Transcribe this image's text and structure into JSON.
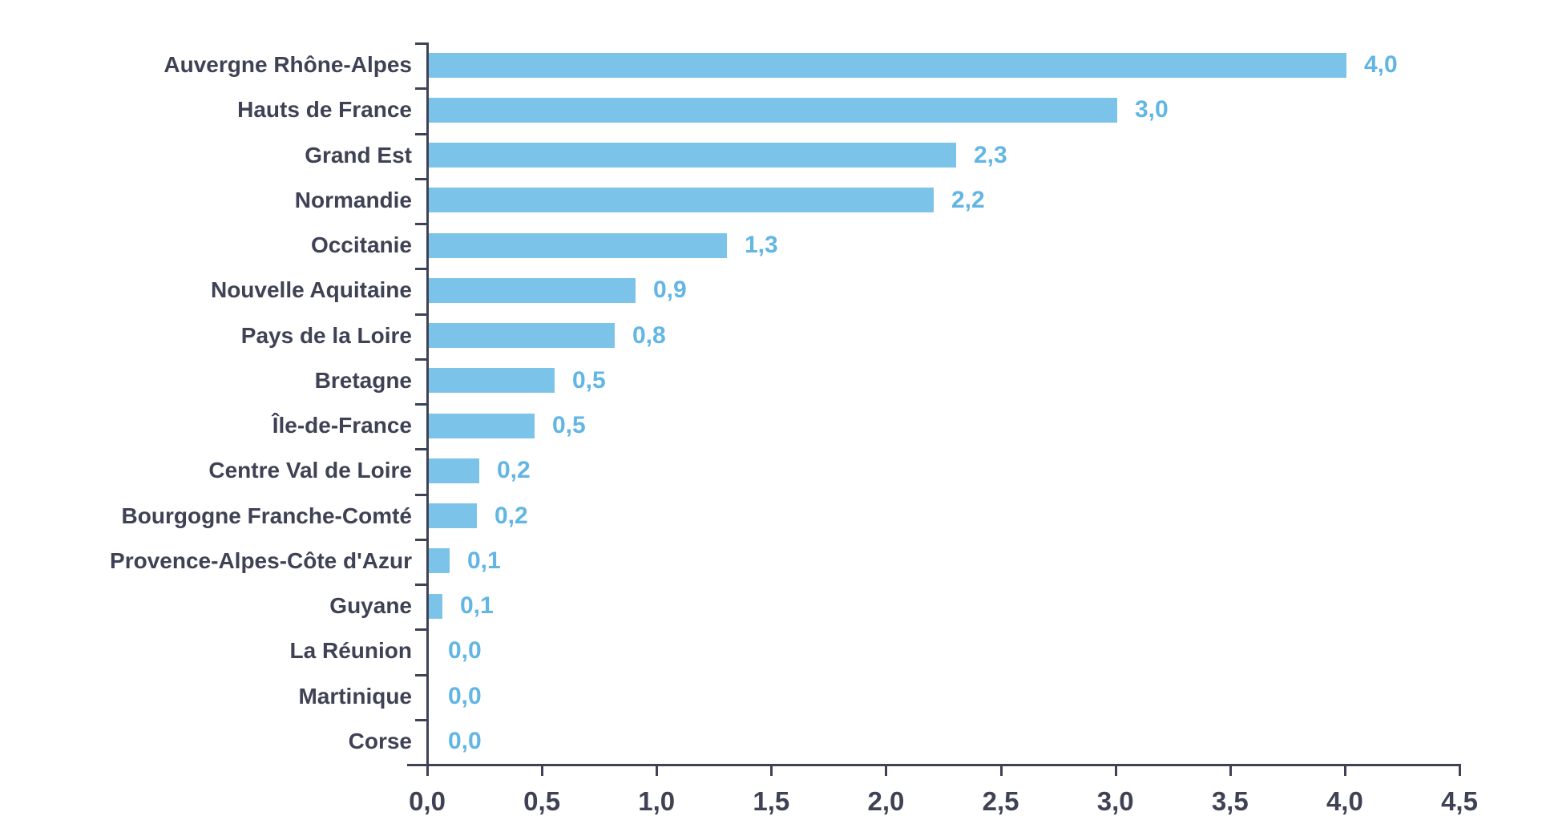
{
  "chart_data": {
    "type": "bar",
    "orientation": "horizontal",
    "title": "",
    "xlabel": "",
    "ylabel": "",
    "xlim": [
      0.0,
      4.5
    ],
    "grid": false,
    "legend": null,
    "categories": [
      "Auvergne Rhône-Alpes",
      "Hauts de France",
      "Grand Est",
      "Normandie",
      "Occitanie",
      "Nouvelle Aquitaine",
      "Pays de la Loire",
      "Bretagne",
      "Île-de-France",
      "Centre Val de Loire",
      "Bourgogne Franche-Comté",
      "Provence-Alpes-Côte  d'Azur",
      "Guyane",
      "La Réunion",
      "Martinique",
      "Corse"
    ],
    "values": [
      4.0,
      3.0,
      2.3,
      2.2,
      1.3,
      0.9,
      0.8,
      0.5,
      0.5,
      0.2,
      0.2,
      0.1,
      0.1,
      0.0,
      0.0,
      0.0
    ],
    "value_labels": [
      "4,0",
      "3,0",
      "2,3",
      "2,2",
      "1,3",
      "0,9",
      "0,8",
      "0,5",
      "0,5",
      "0,2",
      "0,2",
      "0,1",
      "0,1",
      "0,0",
      "0,0",
      "0,0"
    ],
    "visual_lengths": [
      4.0,
      3.0,
      2.3,
      2.2,
      1.3,
      0.9,
      0.81,
      0.55,
      0.46,
      0.22,
      0.21,
      0.09,
      0.06,
      0.0,
      0.0,
      0.0
    ],
    "x_tick_labels": [
      "0,0",
      "0,5",
      "1,0",
      "1,5",
      "2,0",
      "2,5",
      "3,0",
      "3,5",
      "4,0",
      "4,5"
    ],
    "x_tick_values": [
      0.0,
      0.5,
      1.0,
      1.5,
      2.0,
      2.5,
      3.0,
      3.5,
      4.0,
      4.5
    ],
    "colors": {
      "bar": "#7cc3ea",
      "value_label": "#62b6e4",
      "axis": "#3e4254",
      "category_label": "#3e4254",
      "tick_label": "#3e4254",
      "background": "#ffffff"
    }
  }
}
